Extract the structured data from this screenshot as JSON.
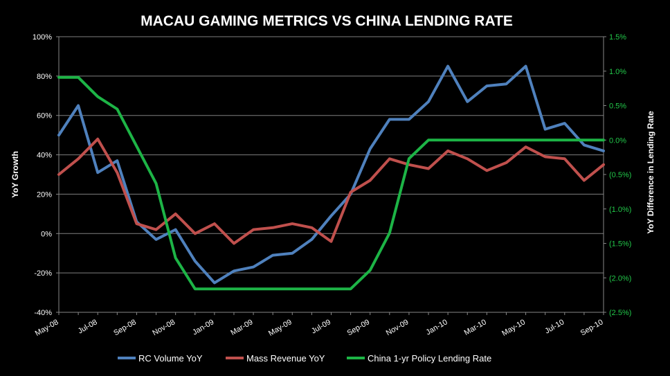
{
  "chart_data": {
    "type": "line",
    "title": "MACAU GAMING METRICS VS CHINA LENDING RATE",
    "ylabel": "YoY Growth",
    "y2label": "YoY Difference in Lending Rate",
    "x_tick_labels": [
      "May-08",
      "Jul-08",
      "Sep-08",
      "Nov-08",
      "Jan-09",
      "Mar-09",
      "May-09",
      "Jul-09",
      "Sep-09",
      "Nov-09",
      "Jan-10",
      "Mar-10",
      "May-10",
      "Jul-10",
      "Sep-10"
    ],
    "y_tick_labels": [
      "100%",
      "80%",
      "60%",
      "40%",
      "20%",
      "0%",
      "-20%",
      "-40%"
    ],
    "y2_tick_labels": [
      "1.5%",
      "1.0%",
      "0.5%",
      "0.0%",
      "(0.5%)",
      "(1.0%)",
      "(1.5%)",
      "(2.0%)",
      "(2.5%)"
    ],
    "ylim": [
      -40,
      100
    ],
    "y2lim": [
      -2.5,
      1.5
    ],
    "x": [
      "May-08",
      "Jun-08",
      "Jul-08",
      "Aug-08",
      "Sep-08",
      "Oct-08",
      "Nov-08",
      "Dec-08",
      "Jan-09",
      "Feb-09",
      "Mar-09",
      "Apr-09",
      "May-09",
      "Jun-09",
      "Jul-09",
      "Aug-09",
      "Sep-09",
      "Oct-09",
      "Nov-09",
      "Dec-09",
      "Jan-10",
      "Feb-10",
      "Mar-10",
      "Apr-10",
      "May-10",
      "Jun-10",
      "Jul-10",
      "Aug-10",
      "Sep-10"
    ],
    "legend_position": "bottom",
    "series": [
      {
        "name": "RC Volume YoY",
        "axis": "left",
        "color": "#4f81bd",
        "values": [
          50,
          65,
          31,
          37,
          6,
          -3,
          2,
          -14,
          -25,
          -19,
          -17,
          -11,
          -10,
          -3,
          9,
          20,
          43,
          58,
          58,
          67,
          85,
          67,
          75,
          76,
          85,
          53,
          56,
          45,
          42
        ]
      },
      {
        "name": "Mass Revenue YoY",
        "axis": "left",
        "color": "#c0504d",
        "values": [
          30,
          38,
          48,
          31,
          5,
          2,
          10,
          0,
          5,
          -5,
          2,
          3,
          5,
          3,
          -4,
          21,
          27,
          38,
          35,
          33,
          42,
          38,
          32,
          36,
          44,
          39,
          38,
          27,
          35
        ]
      },
      {
        "name": "China 1-yr Policy Lending Rate",
        "axis": "right",
        "color": "#1db446",
        "values": [
          0.91,
          0.91,
          0.63,
          0.45,
          -0.09,
          -0.63,
          -1.71,
          -2.16,
          -2.16,
          -2.16,
          -2.16,
          -2.16,
          -2.16,
          -2.16,
          -2.16,
          -2.16,
          -1.89,
          -1.35,
          -0.27,
          0,
          0,
          0,
          0,
          0,
          0,
          0,
          0,
          0,
          0
        ]
      }
    ]
  }
}
